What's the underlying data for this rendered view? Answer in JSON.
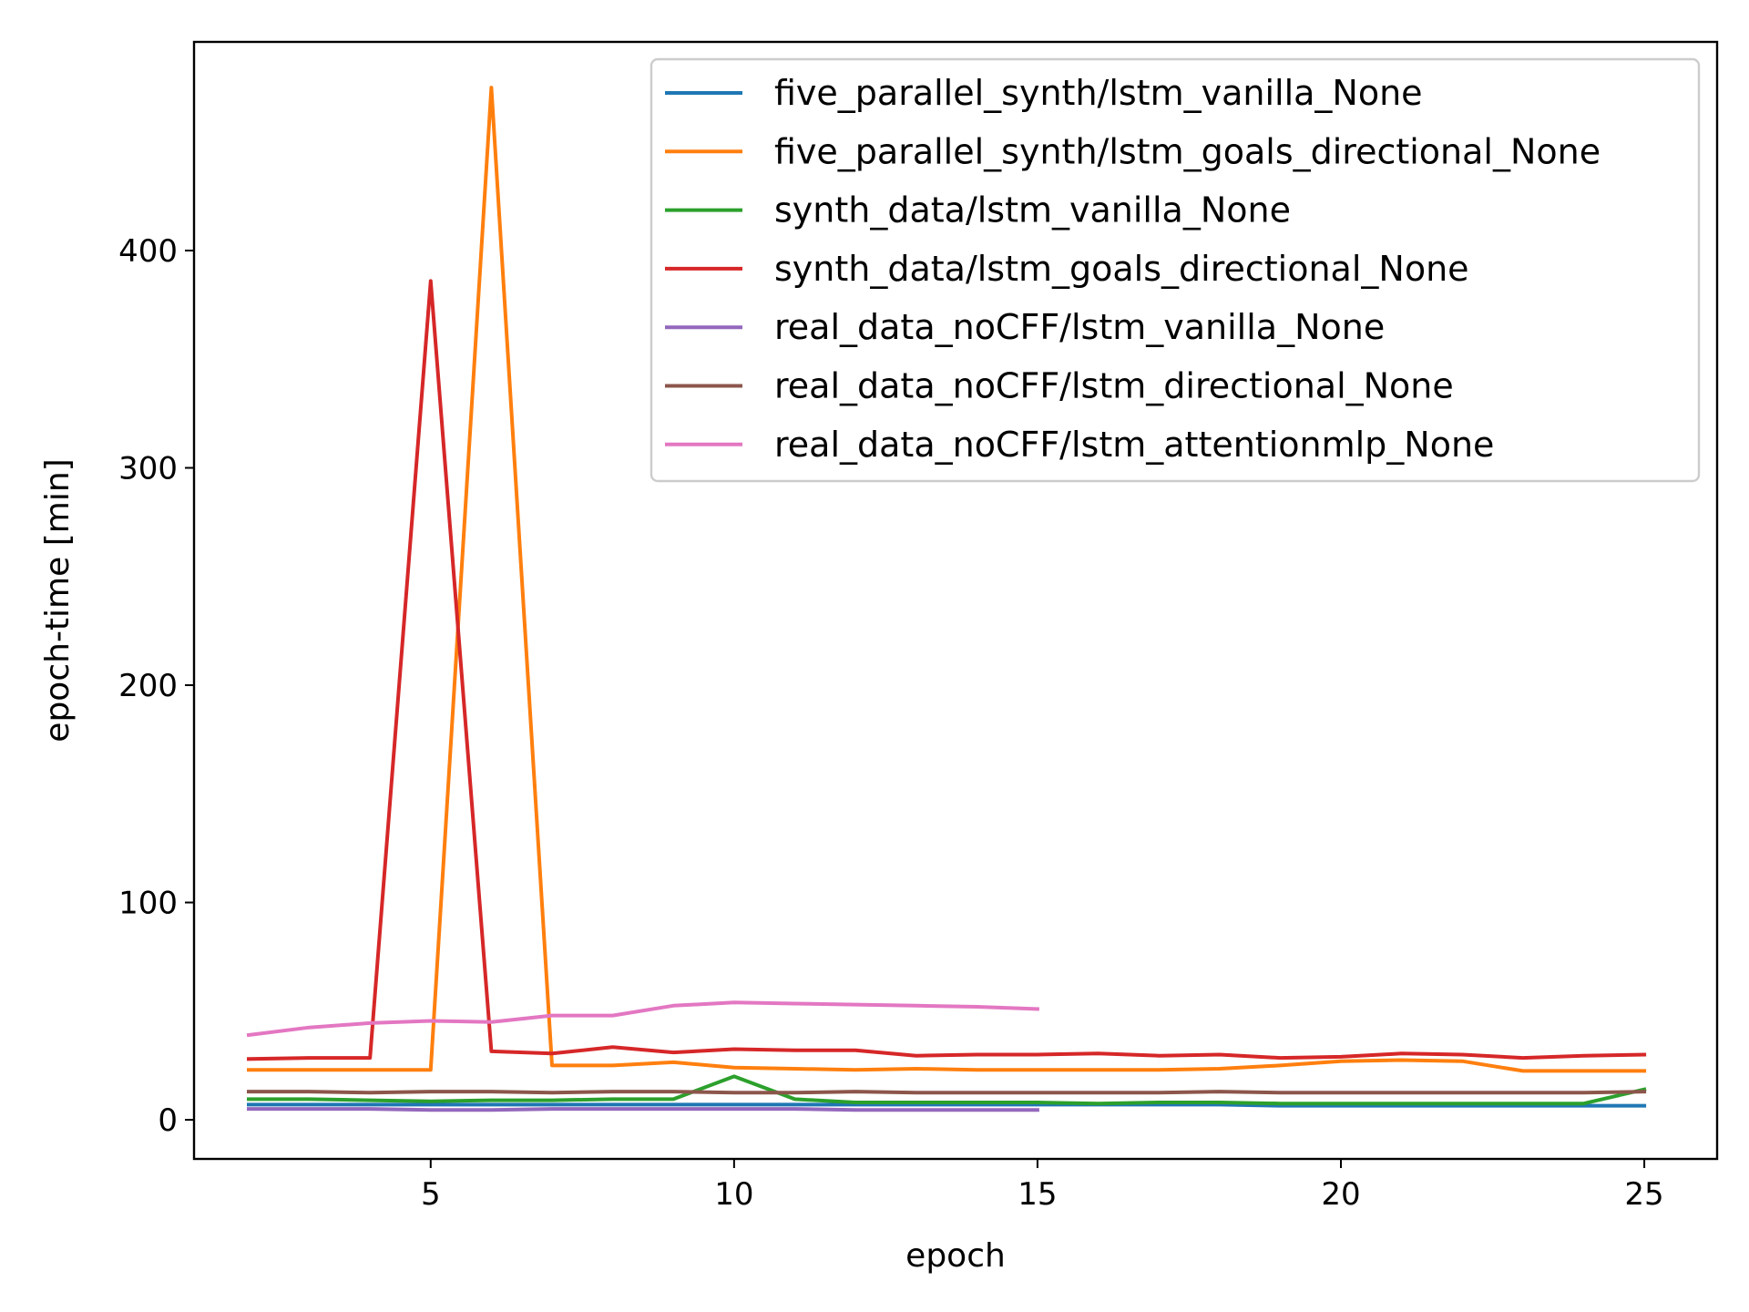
{
  "chart_data": {
    "type": "line",
    "title": "",
    "xlabel": "epoch",
    "ylabel": "epoch-time [min]",
    "xlim": [
      1.1,
      26.2
    ],
    "ylim": [
      -18,
      496
    ],
    "xticks": [
      5,
      10,
      15,
      20,
      25
    ],
    "yticks": [
      0,
      100,
      200,
      300,
      400
    ],
    "grid": false,
    "legend_position": "top-right",
    "series": [
      {
        "name": "five_parallel_synth/lstm_vanilla_None",
        "color": "#1f77b4",
        "x": [
          2,
          3,
          4,
          5,
          6,
          7,
          8,
          9,
          10,
          11,
          12,
          13,
          14,
          15,
          16,
          17,
          18,
          19,
          20,
          21,
          22,
          23,
          24,
          25
        ],
        "values": [
          7,
          7,
          7,
          7,
          7,
          7,
          7,
          7,
          7,
          7,
          7,
          7,
          7,
          7,
          7,
          7,
          7,
          6.5,
          6.5,
          6.5,
          6.5,
          6.5,
          6.5,
          6.5
        ]
      },
      {
        "name": "five_parallel_synth/lstm_goals_directional_None",
        "color": "#ff7f0e",
        "x": [
          2,
          3,
          4,
          5,
          6,
          7,
          8,
          9,
          10,
          11,
          12,
          13,
          14,
          15,
          16,
          17,
          18,
          19,
          20,
          21,
          22,
          23,
          24,
          25
        ],
        "values": [
          23,
          23,
          23,
          23,
          475,
          25,
          25,
          26.5,
          24,
          23.5,
          23,
          23.5,
          23,
          23,
          23,
          23,
          23.5,
          25,
          27,
          27.5,
          27,
          22.5,
          22.5,
          22.5
        ]
      },
      {
        "name": "synth_data/lstm_vanilla_None",
        "color": "#2ca02c",
        "x": [
          2,
          3,
          4,
          5,
          6,
          7,
          8,
          9,
          10,
          11,
          12,
          13,
          14,
          15,
          16,
          17,
          18,
          19,
          20,
          21,
          22,
          23,
          24,
          25
        ],
        "values": [
          9.5,
          9.5,
          9,
          8.5,
          9,
          9,
          9.5,
          9.5,
          20,
          9.5,
          8,
          8,
          8,
          8,
          7.5,
          8,
          8,
          7.5,
          7.5,
          7.5,
          7.5,
          7.5,
          7.5,
          14
        ]
      },
      {
        "name": "synth_data/lstm_goals_directional_None",
        "color": "#d62728",
        "x": [
          2,
          3,
          4,
          5,
          6,
          7,
          8,
          9,
          10,
          11,
          12,
          13,
          14,
          15,
          16,
          17,
          18,
          19,
          20,
          21,
          22,
          23,
          24,
          25
        ],
        "values": [
          28,
          28.5,
          28.5,
          386,
          31.5,
          30.5,
          33.5,
          31,
          32.5,
          32,
          32,
          29.5,
          30,
          30,
          30.5,
          29.5,
          30,
          28.5,
          29,
          30.5,
          30,
          28.5,
          29.5,
          30
        ]
      },
      {
        "name": "real_data_noCFF/lstm_vanilla_None",
        "color": "#9467bd",
        "x": [
          2,
          3,
          4,
          5,
          6,
          7,
          8,
          9,
          10,
          11,
          12,
          13,
          14,
          15
        ],
        "values": [
          5,
          5,
          5,
          4.5,
          4.5,
          5,
          5,
          5,
          5,
          5,
          4.5,
          4.5,
          4.5,
          4.5
        ]
      },
      {
        "name": "real_data_noCFF/lstm_directional_None",
        "color": "#8c564b",
        "x": [
          2,
          3,
          4,
          5,
          6,
          7,
          8,
          9,
          10,
          11,
          12,
          13,
          14,
          15,
          16,
          17,
          18,
          19,
          20,
          21,
          22,
          23,
          24,
          25
        ],
        "values": [
          13,
          13,
          12.5,
          13,
          13,
          12.5,
          13,
          13,
          12.5,
          12.5,
          13,
          12.5,
          12.5,
          12.5,
          12.5,
          12.5,
          13,
          12.5,
          12.5,
          12.5,
          12.5,
          12.5,
          12.5,
          13
        ]
      },
      {
        "name": "real_data_noCFF/lstm_attentionmlp_None",
        "color": "#e377c2",
        "x": [
          2,
          3,
          4,
          5,
          6,
          7,
          8,
          9,
          10,
          11,
          12,
          13,
          14,
          15
        ],
        "values": [
          39,
          42.5,
          44.5,
          45.5,
          45,
          48,
          48,
          52.5,
          54,
          53.5,
          53,
          52.5,
          52,
          51
        ]
      }
    ]
  }
}
